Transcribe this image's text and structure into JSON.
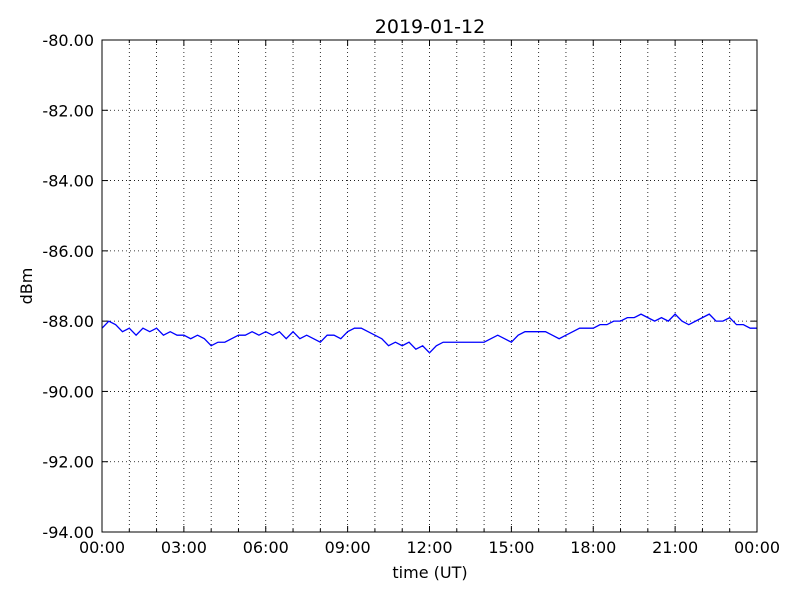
{
  "chart_data": {
    "type": "line",
    "title": "2019-01-12",
    "xlabel": "time (UT)",
    "ylabel": "dBm",
    "x": [
      0,
      0.25,
      0.5,
      0.75,
      1,
      1.25,
      1.5,
      1.75,
      2,
      2.25,
      2.5,
      2.75,
      3,
      3.25,
      3.5,
      3.75,
      4,
      4.25,
      4.5,
      4.75,
      5,
      5.25,
      5.5,
      5.75,
      6,
      6.25,
      6.5,
      6.75,
      7,
      7.25,
      7.5,
      7.75,
      8,
      8.25,
      8.5,
      8.75,
      9,
      9.25,
      9.5,
      9.75,
      10,
      10.25,
      10.5,
      10.75,
      11,
      11.25,
      11.5,
      11.75,
      12,
      12.25,
      12.5,
      12.75,
      13,
      13.25,
      13.5,
      13.75,
      14,
      14.25,
      14.5,
      14.75,
      15,
      15.25,
      15.5,
      15.75,
      16,
      16.25,
      16.5,
      16.75,
      17,
      17.25,
      17.5,
      17.75,
      18,
      18.25,
      18.5,
      18.75,
      19,
      19.25,
      19.5,
      19.75,
      20,
      20.25,
      20.5,
      20.75,
      21,
      21.25,
      21.5,
      21.75,
      22,
      22.25,
      22.5,
      22.75,
      23,
      23.25,
      23.5,
      23.75,
      24
    ],
    "series": [
      {
        "color": "#0000ff",
        "values": [
          -88.2,
          -88.0,
          -88.1,
          -88.3,
          -88.2,
          -88.4,
          -88.2,
          -88.3,
          -88.2,
          -88.4,
          -88.3,
          -88.4,
          -88.4,
          -88.5,
          -88.4,
          -88.5,
          -88.7,
          -88.6,
          -88.6,
          -88.5,
          -88.4,
          -88.4,
          -88.3,
          -88.4,
          -88.3,
          -88.4,
          -88.3,
          -88.5,
          -88.3,
          -88.5,
          -88.4,
          -88.5,
          -88.6,
          -88.4,
          -88.4,
          -88.5,
          -88.3,
          -88.2,
          -88.2,
          -88.3,
          -88.4,
          -88.5,
          -88.7,
          -88.6,
          -88.7,
          -88.6,
          -88.8,
          -88.7,
          -88.9,
          -88.7,
          -88.6,
          -88.6,
          -88.6,
          -88.6,
          -88.6,
          -88.6,
          -88.6,
          -88.5,
          -88.4,
          -88.5,
          -88.6,
          -88.4,
          -88.3,
          -88.3,
          -88.3,
          -88.3,
          -88.4,
          -88.5,
          -88.4,
          -88.3,
          -88.2,
          -88.2,
          -88.2,
          -88.1,
          -88.1,
          -88.0,
          -88.0,
          -87.9,
          -87.9,
          -87.8,
          -87.9,
          -88.0,
          -87.9,
          -88.0,
          -87.8,
          -88.0,
          -88.1,
          -88.0,
          -87.9,
          -87.8,
          -88.0,
          -88.0,
          -87.9,
          -88.1,
          -88.1,
          -88.2,
          -88.2
        ]
      }
    ],
    "xlim": [
      0,
      24
    ],
    "xticks": [
      {
        "value": 0,
        "label": "00:00"
      },
      {
        "value": 3,
        "label": "03:00"
      },
      {
        "value": 6,
        "label": "06:00"
      },
      {
        "value": 9,
        "label": "09:00"
      },
      {
        "value": 12,
        "label": "12:00"
      },
      {
        "value": 15,
        "label": "15:00"
      },
      {
        "value": 18,
        "label": "18:00"
      },
      {
        "value": 21,
        "label": "21:00"
      },
      {
        "value": 24,
        "label": "00:00"
      }
    ],
    "minor_xticks": [
      1,
      2,
      4,
      5,
      7,
      8,
      10,
      11,
      13,
      14,
      16,
      17,
      19,
      20,
      22,
      23
    ],
    "ylim": [
      -94,
      -80
    ],
    "yticks": [
      {
        "value": -94,
        "label": "-94.00"
      },
      {
        "value": -92,
        "label": "-92.00"
      },
      {
        "value": -90,
        "label": "-90.00"
      },
      {
        "value": -88,
        "label": "-88.00"
      },
      {
        "value": -86,
        "label": "-86.00"
      },
      {
        "value": -84,
        "label": "-84.00"
      },
      {
        "value": -82,
        "label": "-82.00"
      },
      {
        "value": -80,
        "label": "-80.00"
      }
    ],
    "grid": true
  }
}
